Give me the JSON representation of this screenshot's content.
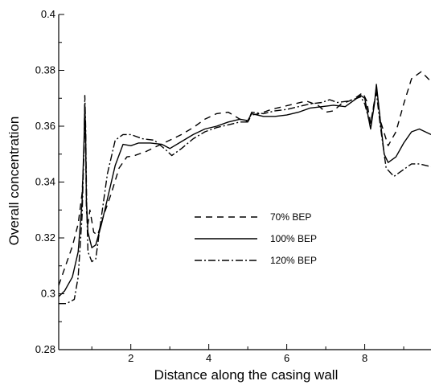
{
  "chart_data": {
    "type": "line",
    "xlabel": "Distance along the casing wall",
    "ylabel": "Overall concentration",
    "xlim": [
      0.15,
      9.7
    ],
    "ylim": [
      0.28,
      0.4
    ],
    "xticks": [
      2,
      4,
      6,
      8
    ],
    "xtick_labels": [
      "2",
      "4",
      "6",
      "8"
    ],
    "yticks": [
      0.28,
      0.3,
      0.32,
      0.34,
      0.36,
      0.38,
      0.4
    ],
    "ytick_labels": [
      "0.28",
      "0.3",
      "0.32",
      "0.34",
      "0.36",
      "0.38",
      "0.4"
    ],
    "grid": false,
    "legend_position": "center",
    "series": [
      {
        "name": "70% BEP",
        "dash": "8,6",
        "points": [
          [
            0.15,
            0.303
          ],
          [
            0.3,
            0.309
          ],
          [
            0.5,
            0.317
          ],
          [
            0.65,
            0.325
          ],
          [
            0.75,
            0.336
          ],
          [
            0.8,
            0.351
          ],
          [
            0.82,
            0.362
          ],
          [
            0.84,
            0.356
          ],
          [
            0.86,
            0.33
          ],
          [
            0.9,
            0.325
          ],
          [
            0.95,
            0.33
          ],
          [
            1.05,
            0.322
          ],
          [
            1.15,
            0.321
          ],
          [
            1.3,
            0.328
          ],
          [
            1.5,
            0.336
          ],
          [
            1.7,
            0.345
          ],
          [
            1.9,
            0.349
          ],
          [
            2.1,
            0.3495
          ],
          [
            2.4,
            0.351
          ],
          [
            2.7,
            0.353
          ],
          [
            3.0,
            0.355
          ],
          [
            3.3,
            0.357
          ],
          [
            3.6,
            0.3595
          ],
          [
            3.9,
            0.3625
          ],
          [
            4.2,
            0.3645
          ],
          [
            4.5,
            0.365
          ],
          [
            4.8,
            0.3625
          ],
          [
            5.0,
            0.3615
          ],
          [
            5.1,
            0.364
          ],
          [
            5.3,
            0.3645
          ],
          [
            5.6,
            0.366
          ],
          [
            5.9,
            0.367
          ],
          [
            6.2,
            0.368
          ],
          [
            6.5,
            0.369
          ],
          [
            6.8,
            0.3675
          ],
          [
            7.0,
            0.365
          ],
          [
            7.2,
            0.3655
          ],
          [
            7.4,
            0.368
          ],
          [
            7.6,
            0.369
          ],
          [
            7.8,
            0.3705
          ],
          [
            7.95,
            0.372
          ],
          [
            8.05,
            0.369
          ],
          [
            8.15,
            0.361
          ],
          [
            8.25,
            0.369
          ],
          [
            8.3,
            0.374
          ],
          [
            8.4,
            0.362
          ],
          [
            8.6,
            0.353
          ],
          [
            8.8,
            0.358
          ],
          [
            9.0,
            0.368
          ],
          [
            9.2,
            0.377
          ],
          [
            9.45,
            0.3795
          ],
          [
            9.7,
            0.376
          ]
        ]
      },
      {
        "name": "100% BEP",
        "dash": "",
        "points": [
          [
            0.15,
            0.299
          ],
          [
            0.3,
            0.301
          ],
          [
            0.5,
            0.306
          ],
          [
            0.65,
            0.315
          ],
          [
            0.75,
            0.333
          ],
          [
            0.8,
            0.355
          ],
          [
            0.82,
            0.368
          ],
          [
            0.84,
            0.357
          ],
          [
            0.86,
            0.334
          ],
          [
            0.9,
            0.322
          ],
          [
            1.0,
            0.3165
          ],
          [
            1.1,
            0.3175
          ],
          [
            1.25,
            0.325
          ],
          [
            1.4,
            0.334
          ],
          [
            1.6,
            0.346
          ],
          [
            1.8,
            0.3535
          ],
          [
            2.0,
            0.353
          ],
          [
            2.2,
            0.354
          ],
          [
            2.5,
            0.354
          ],
          [
            2.8,
            0.3535
          ],
          [
            3.0,
            0.352
          ],
          [
            3.3,
            0.3545
          ],
          [
            3.6,
            0.357
          ],
          [
            3.9,
            0.359
          ],
          [
            4.2,
            0.36
          ],
          [
            4.5,
            0.3615
          ],
          [
            4.8,
            0.3625
          ],
          [
            5.0,
            0.362
          ],
          [
            5.1,
            0.3645
          ],
          [
            5.4,
            0.3635
          ],
          [
            5.7,
            0.3635
          ],
          [
            6.0,
            0.364
          ],
          [
            6.3,
            0.365
          ],
          [
            6.6,
            0.3665
          ],
          [
            6.9,
            0.367
          ],
          [
            7.2,
            0.3675
          ],
          [
            7.5,
            0.367
          ],
          [
            7.7,
            0.369
          ],
          [
            7.9,
            0.371
          ],
          [
            8.0,
            0.37
          ],
          [
            8.15,
            0.359
          ],
          [
            8.25,
            0.368
          ],
          [
            8.3,
            0.375
          ],
          [
            8.4,
            0.362
          ],
          [
            8.5,
            0.35
          ],
          [
            8.6,
            0.347
          ],
          [
            8.8,
            0.349
          ],
          [
            9.0,
            0.354
          ],
          [
            9.2,
            0.358
          ],
          [
            9.4,
            0.359
          ],
          [
            9.7,
            0.357
          ]
        ]
      },
      {
        "name": "120% BEP",
        "dash": "9,3,2,3",
        "points": [
          [
            0.15,
            0.2965
          ],
          [
            0.35,
            0.2965
          ],
          [
            0.55,
            0.298
          ],
          [
            0.65,
            0.306
          ],
          [
            0.75,
            0.328
          ],
          [
            0.8,
            0.352
          ],
          [
            0.82,
            0.371
          ],
          [
            0.84,
            0.36
          ],
          [
            0.87,
            0.33
          ],
          [
            0.9,
            0.315
          ],
          [
            1.0,
            0.3115
          ],
          [
            1.1,
            0.3125
          ],
          [
            1.25,
            0.328
          ],
          [
            1.4,
            0.343
          ],
          [
            1.6,
            0.355
          ],
          [
            1.8,
            0.357
          ],
          [
            2.0,
            0.357
          ],
          [
            2.3,
            0.3555
          ],
          [
            2.6,
            0.355
          ],
          [
            2.9,
            0.3515
          ],
          [
            3.05,
            0.3495
          ],
          [
            3.3,
            0.352
          ],
          [
            3.6,
            0.3555
          ],
          [
            3.9,
            0.358
          ],
          [
            4.2,
            0.3595
          ],
          [
            4.5,
            0.3605
          ],
          [
            4.8,
            0.3615
          ],
          [
            5.0,
            0.3615
          ],
          [
            5.1,
            0.365
          ],
          [
            5.4,
            0.3645
          ],
          [
            5.7,
            0.3655
          ],
          [
            6.0,
            0.366
          ],
          [
            6.3,
            0.367
          ],
          [
            6.6,
            0.368
          ],
          [
            6.9,
            0.3685
          ],
          [
            7.1,
            0.3695
          ],
          [
            7.3,
            0.3685
          ],
          [
            7.6,
            0.369
          ],
          [
            7.9,
            0.3705
          ],
          [
            8.0,
            0.368
          ],
          [
            8.15,
            0.36
          ],
          [
            8.25,
            0.369
          ],
          [
            8.3,
            0.372
          ],
          [
            8.4,
            0.36
          ],
          [
            8.55,
            0.345
          ],
          [
            8.75,
            0.342
          ],
          [
            8.95,
            0.344
          ],
          [
            9.2,
            0.3465
          ],
          [
            9.4,
            0.3465
          ],
          [
            9.7,
            0.3455
          ]
        ]
      }
    ]
  }
}
